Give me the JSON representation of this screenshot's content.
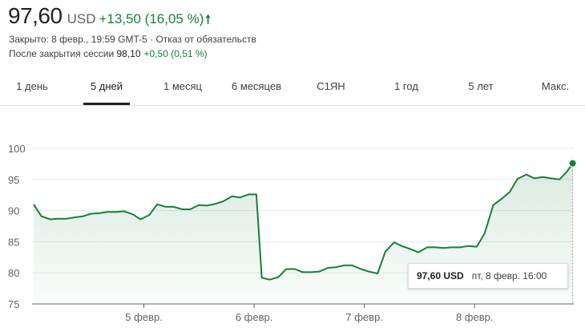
{
  "quote": {
    "price": "97,60",
    "currency": "USD",
    "change": "+13,50 (16,05 %)",
    "arrow_icon": "arrow-up-icon",
    "meta": "Закрыто: 8 февр., 19:59 GMT-5 · Отказ от обязательств",
    "after_hours_label": "После закрытия сессии",
    "after_hours_price": "98,10",
    "after_hours_change": "+0,50 (0,51 %)"
  },
  "tabs": [
    {
      "label": "1 день",
      "active": false
    },
    {
      "label": "5 дней",
      "active": true
    },
    {
      "label": "1 месяц",
      "active": false
    },
    {
      "label": "6 месяцев",
      "active": false
    },
    {
      "label": "С1ЯН",
      "active": false
    },
    {
      "label": "1 год",
      "active": false
    },
    {
      "label": "5 лет",
      "active": false
    },
    {
      "label": "Макс.",
      "active": false
    }
  ],
  "colors": {
    "line": "#188038",
    "accent": "#188038",
    "grid": "#e8eaed"
  },
  "tooltip": {
    "price": "97,60 USD",
    "time": "пт, 8 февр. 16:00"
  },
  "chart_data": {
    "type": "area",
    "ylim": [
      75,
      100
    ],
    "y_ticks": [
      75,
      80,
      85,
      90,
      95,
      100
    ],
    "y_tick_labels": [
      "75",
      "80",
      "85",
      "90",
      "95",
      "100"
    ],
    "xlim": [
      0,
      4.9
    ],
    "x_ticks": [
      1,
      2,
      3,
      4
    ],
    "x_tick_labels": [
      "5 февр.",
      "6 февр.",
      "7 февр.",
      "8 февр."
    ],
    "grid": true,
    "x": [
      0.0,
      0.07,
      0.15,
      0.22,
      0.3,
      0.37,
      0.45,
      0.52,
      0.6,
      0.67,
      0.75,
      0.82,
      0.9,
      0.97,
      1.05,
      1.12,
      1.2,
      1.27,
      1.35,
      1.42,
      1.5,
      1.57,
      1.65,
      1.72,
      1.8,
      1.87,
      1.95,
      2.02,
      2.07,
      2.14,
      2.22,
      2.29,
      2.37,
      2.44,
      2.52,
      2.59,
      2.67,
      2.74,
      2.82,
      2.89,
      2.97,
      3.04,
      3.12,
      3.19,
      3.27,
      3.34,
      3.42,
      3.49,
      3.57,
      3.64,
      3.72,
      3.79,
      3.87,
      3.94,
      4.02,
      4.09,
      4.17,
      4.24,
      4.32,
      4.39,
      4.47,
      4.54,
      4.62,
      4.69,
      4.77,
      4.84,
      4.89
    ],
    "values": [
      91.0,
      89.1,
      88.6,
      88.7,
      88.7,
      88.9,
      89.1,
      89.5,
      89.6,
      89.8,
      89.8,
      89.9,
      89.4,
      88.6,
      89.3,
      91.0,
      90.6,
      90.6,
      90.2,
      90.2,
      90.9,
      90.8,
      91.1,
      91.5,
      92.3,
      92.1,
      92.6,
      92.6,
      79.2,
      78.9,
      79.3,
      80.6,
      80.6,
      80.1,
      80.1,
      80.2,
      80.8,
      80.9,
      81.2,
      81.2,
      80.6,
      80.2,
      79.9,
      83.4,
      84.9,
      84.3,
      83.8,
      83.3,
      84.1,
      84.1,
      84.0,
      84.1,
      84.1,
      84.3,
      84.2,
      86.3,
      90.9,
      91.8,
      93.0,
      95.1,
      95.8,
      95.2,
      95.4,
      95.2,
      95.0,
      96.3,
      97.6
    ]
  }
}
